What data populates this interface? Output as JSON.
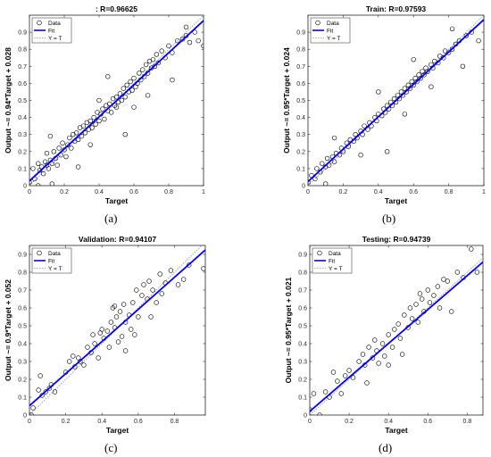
{
  "figure": {
    "captions": [
      "(a)",
      "(b)",
      "(c)",
      "(d)"
    ]
  },
  "chart_data": [
    {
      "type": "scatter",
      "title": ": R=0.96625",
      "xlabel": "Target",
      "ylabel": "Output ~= 0.94*Target + 0.028",
      "xlim": [
        0,
        1
      ],
      "ylim": [
        0,
        1
      ],
      "xticks": [
        0,
        0.2,
        0.4,
        0.6,
        0.8,
        1
      ],
      "yticks": [
        0,
        0.1,
        0.2,
        0.3,
        0.4,
        0.5,
        0.6,
        0.7,
        0.8,
        0.9
      ],
      "legend": {
        "position": "top-left",
        "entries": [
          "Data",
          "Fit",
          "Y = T"
        ]
      },
      "fit": {
        "slope": 0.94,
        "intercept": 0.028
      },
      "grid": false,
      "points": [
        [
          0.0,
          0.02
        ],
        [
          0.02,
          0.1
        ],
        [
          0.03,
          0.04
        ],
        [
          0.05,
          0.0
        ],
        [
          0.05,
          0.13
        ],
        [
          0.06,
          0.09
        ],
        [
          0.07,
          0.11
        ],
        [
          0.08,
          0.07
        ],
        [
          0.09,
          0.14
        ],
        [
          0.1,
          0.12
        ],
        [
          0.1,
          0.19
        ],
        [
          0.11,
          0.1
        ],
        [
          0.12,
          0.15
        ],
        [
          0.13,
          0.13
        ],
        [
          0.14,
          0.2
        ],
        [
          0.15,
          0.16
        ],
        [
          0.16,
          0.12
        ],
        [
          0.17,
          0.22
        ],
        [
          0.18,
          0.18
        ],
        [
          0.19,
          0.25
        ],
        [
          0.2,
          0.21
        ],
        [
          0.21,
          0.17
        ],
        [
          0.22,
          0.24
        ],
        [
          0.23,
          0.28
        ],
        [
          0.24,
          0.22
        ],
        [
          0.25,
          0.3
        ],
        [
          0.26,
          0.26
        ],
        [
          0.27,
          0.31
        ],
        [
          0.28,
          0.27
        ],
        [
          0.29,
          0.34
        ],
        [
          0.3,
          0.29
        ],
        [
          0.31,
          0.35
        ],
        [
          0.32,
          0.31
        ],
        [
          0.33,
          0.37
        ],
        [
          0.34,
          0.33
        ],
        [
          0.35,
          0.38
        ],
        [
          0.36,
          0.34
        ],
        [
          0.37,
          0.4
        ],
        [
          0.38,
          0.36
        ],
        [
          0.39,
          0.43
        ],
        [
          0.4,
          0.38
        ],
        [
          0.41,
          0.42
        ],
        [
          0.42,
          0.45
        ],
        [
          0.43,
          0.39
        ],
        [
          0.44,
          0.47
        ],
        [
          0.45,
          0.44
        ],
        [
          0.46,
          0.48
        ],
        [
          0.47,
          0.43
        ],
        [
          0.48,
          0.51
        ],
        [
          0.49,
          0.47
        ],
        [
          0.5,
          0.52
        ],
        [
          0.5,
          0.46
        ],
        [
          0.51,
          0.49
        ],
        [
          0.52,
          0.54
        ],
        [
          0.53,
          0.5
        ],
        [
          0.54,
          0.57
        ],
        [
          0.55,
          0.52
        ],
        [
          0.56,
          0.59
        ],
        [
          0.57,
          0.55
        ],
        [
          0.58,
          0.61
        ],
        [
          0.59,
          0.56
        ],
        [
          0.6,
          0.63
        ],
        [
          0.61,
          0.58
        ],
        [
          0.62,
          0.6
        ],
        [
          0.63,
          0.66
        ],
        [
          0.64,
          0.62
        ],
        [
          0.65,
          0.68
        ],
        [
          0.66,
          0.64
        ],
        [
          0.67,
          0.71
        ],
        [
          0.68,
          0.66
        ],
        [
          0.69,
          0.73
        ],
        [
          0.7,
          0.69
        ],
        [
          0.71,
          0.74
        ],
        [
          0.72,
          0.7
        ],
        [
          0.73,
          0.77
        ],
        [
          0.74,
          0.72
        ],
        [
          0.76,
          0.79
        ],
        [
          0.78,
          0.75
        ],
        [
          0.8,
          0.82
        ],
        [
          0.82,
          0.78
        ],
        [
          0.85,
          0.85
        ],
        [
          0.88,
          0.86
        ],
        [
          0.9,
          0.88
        ],
        [
          0.92,
          0.84
        ],
        [
          0.95,
          0.9
        ],
        [
          0.97,
          0.85
        ],
        [
          1.0,
          0.82
        ],
        [
          0.13,
          0.01
        ],
        [
          0.12,
          0.29
        ],
        [
          0.28,
          0.11
        ],
        [
          0.55,
          0.3
        ],
        [
          0.68,
          0.53
        ],
        [
          0.45,
          0.64
        ],
        [
          0.9,
          0.93
        ],
        [
          0.6,
          0.46
        ],
        [
          0.4,
          0.5
        ],
        [
          0.35,
          0.24
        ],
        [
          0.82,
          0.62
        ]
      ]
    },
    {
      "type": "scatter",
      "title": "Train: R=0.97593",
      "xlabel": "Target",
      "ylabel": "Output ~= 0.95*Target + 0.024",
      "xlim": [
        0,
        1
      ],
      "ylim": [
        0,
        1
      ],
      "xticks": [
        0,
        0.2,
        0.4,
        0.6,
        0.8,
        1
      ],
      "yticks": [
        0,
        0.1,
        0.2,
        0.3,
        0.4,
        0.5,
        0.6,
        0.7,
        0.8,
        0.9
      ],
      "legend": {
        "position": "top-left",
        "entries": [
          "Data",
          "Fit",
          "Y = T"
        ]
      },
      "fit": {
        "slope": 0.95,
        "intercept": 0.024
      },
      "grid": false,
      "points": [
        [
          0.0,
          0.02
        ],
        [
          0.02,
          0.06
        ],
        [
          0.04,
          0.04
        ],
        [
          0.05,
          0.1
        ],
        [
          0.07,
          0.08
        ],
        [
          0.08,
          0.13
        ],
        [
          0.1,
          0.11
        ],
        [
          0.11,
          0.16
        ],
        [
          0.12,
          0.12
        ],
        [
          0.14,
          0.17
        ],
        [
          0.15,
          0.14
        ],
        [
          0.16,
          0.19
        ],
        [
          0.18,
          0.18
        ],
        [
          0.19,
          0.22
        ],
        [
          0.2,
          0.2
        ],
        [
          0.22,
          0.25
        ],
        [
          0.23,
          0.23
        ],
        [
          0.24,
          0.27
        ],
        [
          0.26,
          0.26
        ],
        [
          0.27,
          0.3
        ],
        [
          0.28,
          0.28
        ],
        [
          0.3,
          0.32
        ],
        [
          0.31,
          0.3
        ],
        [
          0.32,
          0.35
        ],
        [
          0.34,
          0.33
        ],
        [
          0.35,
          0.37
        ],
        [
          0.36,
          0.35
        ],
        [
          0.38,
          0.4
        ],
        [
          0.39,
          0.38
        ],
        [
          0.4,
          0.42
        ],
        [
          0.42,
          0.41
        ],
        [
          0.43,
          0.45
        ],
        [
          0.44,
          0.43
        ],
        [
          0.45,
          0.47
        ],
        [
          0.46,
          0.45
        ],
        [
          0.47,
          0.49
        ],
        [
          0.48,
          0.47
        ],
        [
          0.49,
          0.51
        ],
        [
          0.5,
          0.49
        ],
        [
          0.51,
          0.53
        ],
        [
          0.52,
          0.51
        ],
        [
          0.53,
          0.55
        ],
        [
          0.54,
          0.53
        ],
        [
          0.55,
          0.57
        ],
        [
          0.56,
          0.55
        ],
        [
          0.57,
          0.59
        ],
        [
          0.58,
          0.57
        ],
        [
          0.59,
          0.61
        ],
        [
          0.6,
          0.59
        ],
        [
          0.61,
          0.63
        ],
        [
          0.62,
          0.61
        ],
        [
          0.63,
          0.65
        ],
        [
          0.64,
          0.63
        ],
        [
          0.65,
          0.67
        ],
        [
          0.66,
          0.65
        ],
        [
          0.67,
          0.69
        ],
        [
          0.68,
          0.67
        ],
        [
          0.7,
          0.71
        ],
        [
          0.71,
          0.69
        ],
        [
          0.72,
          0.73
        ],
        [
          0.74,
          0.72
        ],
        [
          0.75,
          0.76
        ],
        [
          0.77,
          0.75
        ],
        [
          0.78,
          0.79
        ],
        [
          0.8,
          0.78
        ],
        [
          0.82,
          0.8
        ],
        [
          0.84,
          0.83
        ],
        [
          0.86,
          0.85
        ],
        [
          0.9,
          0.88
        ],
        [
          0.93,
          0.9
        ],
        [
          0.97,
          0.85
        ],
        [
          0.1,
          0.01
        ],
        [
          0.15,
          0.28
        ],
        [
          0.45,
          0.2
        ],
        [
          0.6,
          0.74
        ],
        [
          0.4,
          0.55
        ],
        [
          0.7,
          0.58
        ],
        [
          0.82,
          0.92
        ],
        [
          0.3,
          0.18
        ],
        [
          0.55,
          0.42
        ],
        [
          0.88,
          0.7
        ]
      ]
    },
    {
      "type": "scatter",
      "title": "Validation: R=0.94107",
      "xlabel": "Target",
      "ylabel": "Output ~= 0.9*Target + 0.052",
      "xlim": [
        0,
        0.97
      ],
      "ylim": [
        0,
        0.95
      ],
      "xticks": [
        0,
        0.2,
        0.4,
        0.6,
        0.8
      ],
      "yticks": [
        0,
        0.1,
        0.2,
        0.3,
        0.4,
        0.5,
        0.6,
        0.7,
        0.8,
        0.9
      ],
      "legend": {
        "position": "top-left",
        "entries": [
          "Data",
          "Fit",
          "Y = T"
        ]
      },
      "fit": {
        "slope": 0.9,
        "intercept": 0.052
      },
      "grid": false,
      "points": [
        [
          0.01,
          0.0
        ],
        [
          0.02,
          0.04
        ],
        [
          0.05,
          0.14
        ],
        [
          0.06,
          0.22
        ],
        [
          0.07,
          0.11
        ],
        [
          0.09,
          0.13
        ],
        [
          0.11,
          0.15
        ],
        [
          0.12,
          0.17
        ],
        [
          0.14,
          0.13
        ],
        [
          0.2,
          0.24
        ],
        [
          0.22,
          0.3
        ],
        [
          0.25,
          0.27
        ],
        [
          0.27,
          0.32
        ],
        [
          0.28,
          0.3
        ],
        [
          0.3,
          0.28
        ],
        [
          0.32,
          0.38
        ],
        [
          0.34,
          0.35
        ],
        [
          0.36,
          0.4
        ],
        [
          0.38,
          0.32
        ],
        [
          0.39,
          0.46
        ],
        [
          0.4,
          0.48
        ],
        [
          0.41,
          0.43
        ],
        [
          0.43,
          0.47
        ],
        [
          0.44,
          0.38
        ],
        [
          0.45,
          0.52
        ],
        [
          0.46,
          0.6
        ],
        [
          0.47,
          0.49
        ],
        [
          0.48,
          0.55
        ],
        [
          0.49,
          0.41
        ],
        [
          0.5,
          0.58
        ],
        [
          0.51,
          0.44
        ],
        [
          0.52,
          0.62
        ],
        [
          0.53,
          0.52
        ],
        [
          0.55,
          0.56
        ],
        [
          0.56,
          0.48
        ],
        [
          0.57,
          0.63
        ],
        [
          0.58,
          0.45
        ],
        [
          0.59,
          0.7
        ],
        [
          0.6,
          0.55
        ],
        [
          0.62,
          0.67
        ],
        [
          0.63,
          0.73
        ],
        [
          0.65,
          0.65
        ],
        [
          0.66,
          0.75
        ],
        [
          0.68,
          0.7
        ],
        [
          0.7,
          0.63
        ],
        [
          0.72,
          0.79
        ],
        [
          0.73,
          0.68
        ],
        [
          0.75,
          0.74
        ],
        [
          0.78,
          0.81
        ],
        [
          0.82,
          0.73
        ],
        [
          0.85,
          0.76
        ],
        [
          0.88,
          0.84
        ],
        [
          0.96,
          0.82
        ],
        [
          0.24,
          0.33
        ],
        [
          0.53,
          0.36
        ],
        [
          0.47,
          0.61
        ],
        [
          0.35,
          0.45
        ],
        [
          0.67,
          0.55
        ]
      ]
    },
    {
      "type": "scatter",
      "title": "Testing: R=0.94739",
      "xlabel": "Target",
      "ylabel": "Output ~= 0.95*Target + 0.021",
      "xlim": [
        0,
        0.88
      ],
      "ylim": [
        0,
        0.95
      ],
      "xticks": [
        0,
        0.2,
        0.4,
        0.6,
        0.8
      ],
      "yticks": [
        0,
        0.1,
        0.2,
        0.3,
        0.4,
        0.5,
        0.6,
        0.7,
        0.8,
        0.9
      ],
      "legend": {
        "position": "top-left",
        "entries": [
          "Data",
          "Fit",
          "Y = T"
        ]
      },
      "fit": {
        "slope": 0.95,
        "intercept": 0.021
      },
      "grid": false,
      "points": [
        [
          0.0,
          0.03
        ],
        [
          0.02,
          0.12
        ],
        [
          0.05,
          0.0
        ],
        [
          0.08,
          0.13
        ],
        [
          0.1,
          0.1
        ],
        [
          0.12,
          0.24
        ],
        [
          0.14,
          0.19
        ],
        [
          0.16,
          0.12
        ],
        [
          0.18,
          0.22
        ],
        [
          0.2,
          0.25
        ],
        [
          0.22,
          0.21
        ],
        [
          0.25,
          0.3
        ],
        [
          0.27,
          0.34
        ],
        [
          0.28,
          0.28
        ],
        [
          0.3,
          0.38
        ],
        [
          0.32,
          0.32
        ],
        [
          0.34,
          0.36
        ],
        [
          0.35,
          0.29
        ],
        [
          0.37,
          0.4
        ],
        [
          0.38,
          0.33
        ],
        [
          0.4,
          0.45
        ],
        [
          0.42,
          0.38
        ],
        [
          0.43,
          0.48
        ],
        [
          0.45,
          0.51
        ],
        [
          0.46,
          0.43
        ],
        [
          0.48,
          0.56
        ],
        [
          0.5,
          0.49
        ],
        [
          0.51,
          0.6
        ],
        [
          0.52,
          0.54
        ],
        [
          0.54,
          0.62
        ],
        [
          0.55,
          0.52
        ],
        [
          0.57,
          0.65
        ],
        [
          0.58,
          0.58
        ],
        [
          0.6,
          0.7
        ],
        [
          0.61,
          0.63
        ],
        [
          0.63,
          0.67
        ],
        [
          0.65,
          0.72
        ],
        [
          0.66,
          0.6
        ],
        [
          0.68,
          0.76
        ],
        [
          0.7,
          0.75
        ],
        [
          0.72,
          0.58
        ],
        [
          0.75,
          0.8
        ],
        [
          0.78,
          0.77
        ],
        [
          0.82,
          0.93
        ],
        [
          0.85,
          0.8
        ],
        [
          0.29,
          0.18
        ],
        [
          0.4,
          0.28
        ],
        [
          0.56,
          0.68
        ],
        [
          0.47,
          0.34
        ],
        [
          0.33,
          0.42
        ]
      ]
    }
  ]
}
